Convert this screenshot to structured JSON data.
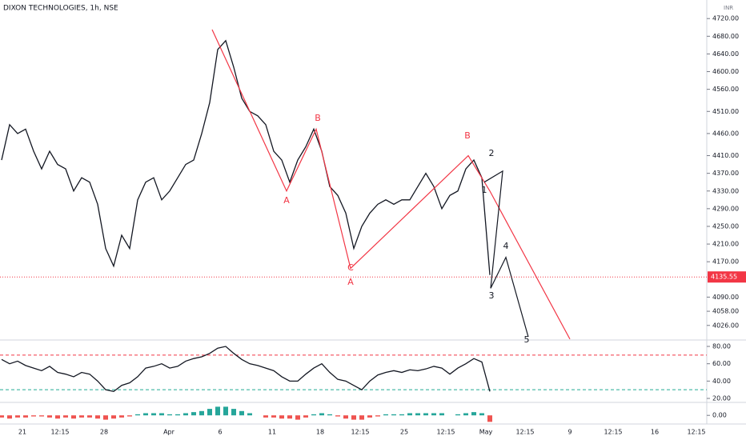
{
  "chart_data": [
    {
      "type": "line",
      "title": "DIXON TECHNOLOGIES, 1h, NSE",
      "unit_label": "INR",
      "color": "#131722",
      "values": [
        4400,
        4480,
        4460,
        4470,
        4420,
        4380,
        4420,
        4390,
        4380,
        4330,
        4360,
        4350,
        4300,
        4200,
        4160,
        4230,
        4200,
        4310,
        4350,
        4360,
        4310,
        4330,
        4360,
        4390,
        4400,
        4460,
        4530,
        4650,
        4670,
        4610,
        4540,
        4510,
        4500,
        4480,
        4420,
        4400,
        4350,
        4400,
        4430,
        4470,
        4420,
        4340,
        4320,
        4280,
        4200,
        4250,
        4280,
        4300,
        4310,
        4300,
        4310,
        4310,
        4340,
        4370,
        4340,
        4290,
        4320,
        4330,
        4380,
        4400,
        4360,
        4140
      ],
      "ylim": [
        3993,
        4762
      ],
      "yticks": [
        {
          "value": 4720,
          "label": "4720.00"
        },
        {
          "value": 4680,
          "label": "4680.00"
        },
        {
          "value": 4640,
          "label": "4640.00"
        },
        {
          "value": 4600,
          "label": "4600.00"
        },
        {
          "value": 4560,
          "label": "4560.00"
        },
        {
          "value": 4510,
          "label": "4510.00"
        },
        {
          "value": 4460,
          "label": "4460.00"
        },
        {
          "value": 4410,
          "label": "4410.00"
        },
        {
          "value": 4370,
          "label": "4370.00"
        },
        {
          "value": 4330,
          "label": "4330.00"
        },
        {
          "value": 4290,
          "label": "4290.00"
        },
        {
          "value": 4250,
          "label": "4250.00"
        },
        {
          "value": 4210,
          "label": "4210.00"
        },
        {
          "value": 4170,
          "label": "4170.00"
        },
        {
          "value": 4090,
          "label": "4090.00"
        },
        {
          "value": 4058,
          "label": "4058.00"
        },
        {
          "value": 4026,
          "label": "4026.00"
        }
      ],
      "last_price": {
        "value": 4135.55,
        "label": "4135.55"
      },
      "wave_lines": [
        {
          "color": "#f23645",
          "x": [
            26.5,
            35.8,
            39.5,
            43.8,
            58.5,
            61.2,
            71.2
          ],
          "values": [
            4695,
            4330,
            4470,
            4155,
            4410,
            4330,
            3995
          ]
        },
        {
          "color": "#131722",
          "x": [
            60.5,
            62.8,
            61.3,
            63.2,
            66
          ],
          "values": [
            4350,
            4375,
            4110,
            4180,
            4000
          ]
        }
      ],
      "annotations": [
        "A",
        "B",
        "A",
        "C",
        "B",
        "2",
        "1",
        "4",
        "3",
        "5"
      ],
      "x_tick_labels": [
        "21",
        "12:15",
        "28",
        "Apr",
        "6",
        "11",
        "18",
        "12:15",
        "25",
        "12:15",
        "May",
        "12:15",
        "9",
        "12:15",
        "16",
        "12:15"
      ]
    },
    {
      "type": "line",
      "color": "#131722",
      "values": [
        65,
        60,
        63,
        58,
        55,
        52,
        57,
        50,
        48,
        45,
        50,
        48,
        40,
        30,
        28,
        35,
        38,
        45,
        55,
        57,
        60,
        55,
        57,
        63,
        66,
        68,
        72,
        78,
        80,
        72,
        65,
        60,
        58,
        55,
        52,
        45,
        40,
        40,
        48,
        55,
        60,
        50,
        42,
        40,
        35,
        30,
        40,
        47,
        50,
        52,
        50,
        53,
        52,
        54,
        57,
        55,
        48,
        55,
        60,
        66,
        62,
        28
      ],
      "ylim": [
        15.4,
        87.4
      ],
      "yticks": [
        {
          "value": 80,
          "label": "80.00"
        },
        {
          "value": 60,
          "label": "60.00"
        },
        {
          "value": 40,
          "label": "40.00"
        },
        {
          "value": 20,
          "label": "20.00"
        }
      ],
      "levels": [
        {
          "value": 70,
          "color": "#f23645"
        },
        {
          "value": 30,
          "color": "#22ab94"
        }
      ]
    },
    {
      "type": "histogram",
      "colors": [
        "#26a69a",
        "#ef5350"
      ],
      "values": [
        -2,
        -3,
        -2,
        -2,
        -1,
        -1,
        -2,
        -3,
        -2,
        -3,
        -2,
        -2,
        -3,
        -4,
        -3,
        -2,
        -1,
        1,
        2,
        2,
        2,
        1,
        1,
        2,
        3,
        4,
        6,
        8,
        8,
        6,
        4,
        2,
        0,
        -2,
        -2,
        -3,
        -3,
        -4,
        -2,
        1,
        2,
        1,
        -1,
        -3,
        -4,
        -4,
        -2,
        -1,
        1,
        1,
        1,
        2,
        2,
        2,
        2,
        2,
        0,
        1,
        2,
        3,
        2,
        -6
      ],
      "ylim": [
        -8,
        12
      ],
      "yticks": [
        {
          "value": 0,
          "label": "0.00"
        }
      ]
    }
  ]
}
